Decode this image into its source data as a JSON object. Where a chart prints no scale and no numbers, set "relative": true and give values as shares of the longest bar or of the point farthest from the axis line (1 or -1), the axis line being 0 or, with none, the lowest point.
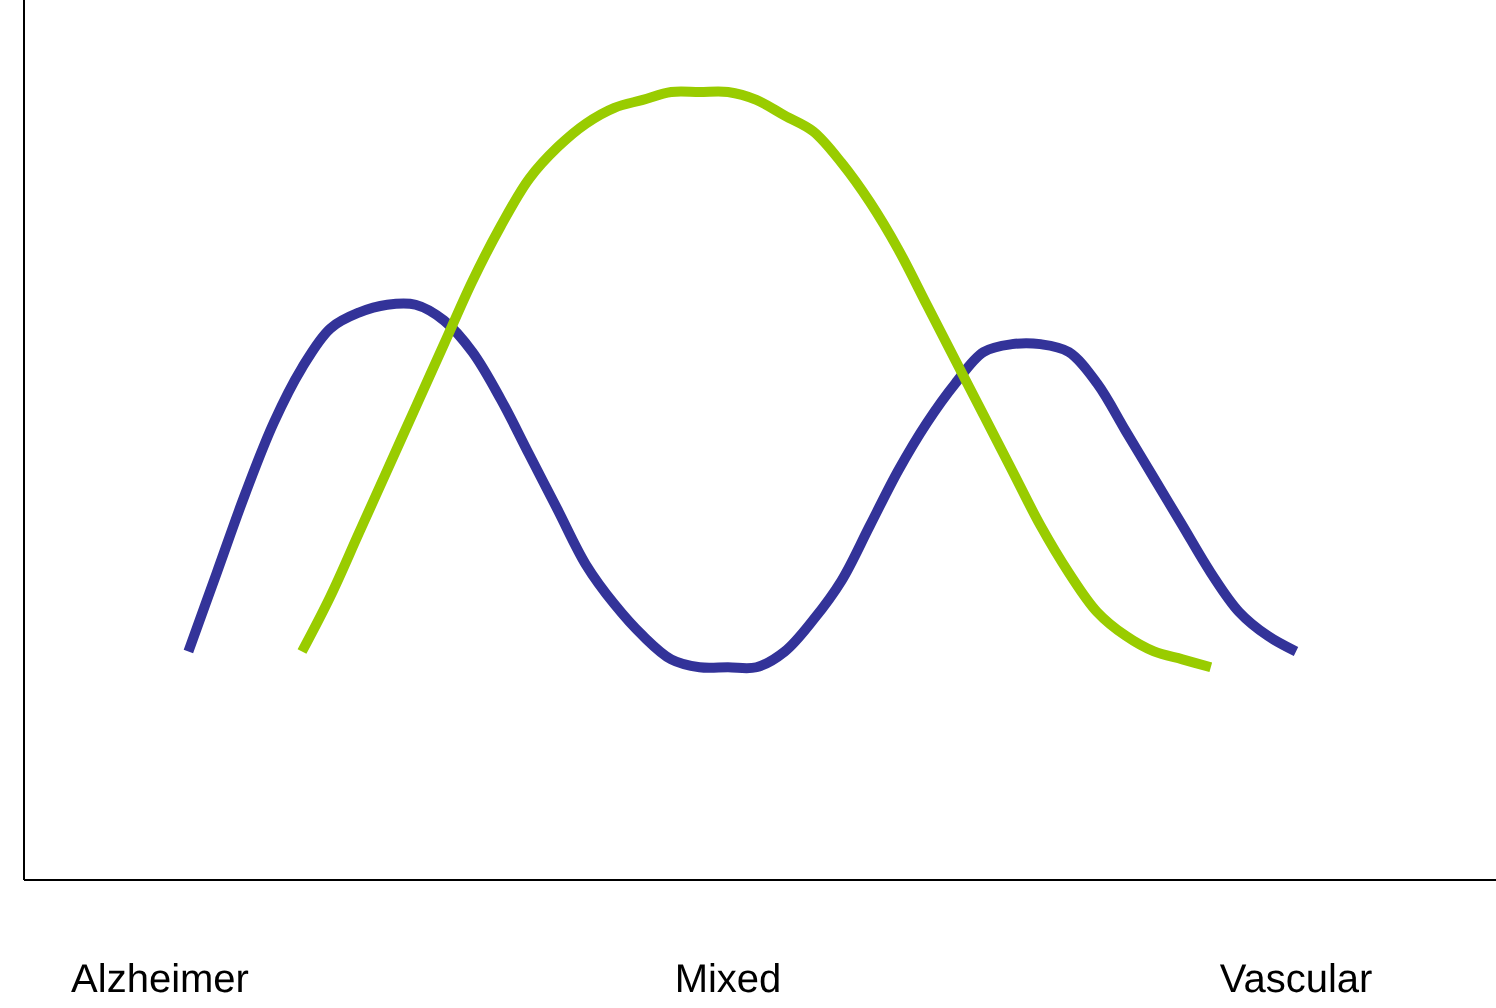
{
  "chart_data": {
    "type": "line",
    "relative": true,
    "grid": false,
    "marker": "none",
    "line_style": "solid",
    "categories": [
      "Alzheimer",
      null,
      null,
      null,
      null,
      null,
      null,
      null,
      null,
      null,
      null,
      null,
      null,
      null,
      null,
      null,
      null,
      null,
      null,
      null,
      "Mixed",
      null,
      null,
      null,
      null,
      null,
      null,
      null,
      null,
      null,
      null,
      null,
      null,
      null,
      null,
      null,
      null,
      null,
      null,
      null,
      "Vascular"
    ],
    "series": [
      {
        "color": "#333399",
        "values": [
          null,
          0.29,
          0.39,
          0.49,
          0.58,
          0.65,
          0.7,
          0.72,
          0.73,
          0.73,
          0.71,
          0.67,
          0.61,
          0.54,
          0.47,
          0.4,
          0.35,
          0.31,
          0.28,
          0.27,
          0.27,
          0.27,
          0.29,
          0.33,
          0.38,
          0.45,
          0.52,
          0.58,
          0.63,
          0.67,
          0.68,
          0.68,
          0.67,
          0.63,
          0.57,
          0.51,
          0.45,
          0.39,
          0.34,
          0.31,
          0.29
        ]
      },
      {
        "color": "#99cc00",
        "values": [
          null,
          null,
          null,
          null,
          null,
          0.29,
          0.36,
          0.44,
          0.52,
          0.6,
          0.68,
          0.76,
          0.83,
          0.89,
          0.93,
          0.96,
          0.98,
          0.99,
          1,
          1,
          1,
          0.99,
          0.97,
          0.95,
          0.91,
          0.86,
          0.8,
          0.73,
          0.66,
          0.59,
          0.52,
          0.45,
          0.39,
          0.34,
          0.31,
          0.29,
          0.28,
          0.27,
          null,
          null,
          null
        ]
      }
    ]
  }
}
